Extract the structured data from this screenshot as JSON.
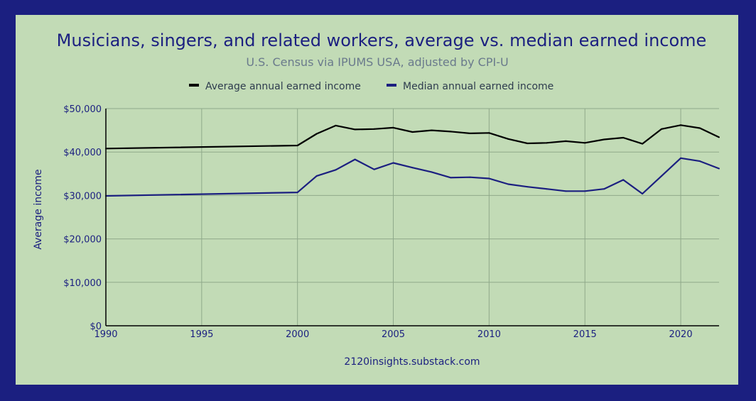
{
  "chart_data": {
    "type": "line",
    "title": "Musicians, singers, and related workers, average vs. median earned income",
    "subtitle": "U.S. Census via IPUMS USA, adjusted by CPI-U",
    "xlabel": "",
    "ylabel": "Average income",
    "source": "2120insights.substack.com",
    "xlim": [
      1990,
      2022
    ],
    "ylim": [
      0,
      50000
    ],
    "x_ticks": [
      1990,
      1995,
      2000,
      2005,
      2010,
      2015,
      2020
    ],
    "x_tick_labels": [
      "1990",
      "1995",
      "2000",
      "2005",
      "2010",
      "2015",
      "2020"
    ],
    "y_ticks": [
      0,
      10000,
      20000,
      30000,
      40000,
      50000
    ],
    "y_tick_labels": [
      "$0",
      "$10,000",
      "$20,000",
      "$30,000",
      "$40,000",
      "$50,000"
    ],
    "grid": true,
    "legend_position": "top-center",
    "series": [
      {
        "name": "Average annual earned income",
        "color": "#000000",
        "x": [
          1990,
          2000,
          2001,
          2002,
          2003,
          2004,
          2005,
          2006,
          2007,
          2008,
          2009,
          2010,
          2011,
          2012,
          2013,
          2014,
          2015,
          2016,
          2017,
          2018,
          2019,
          2020,
          2021,
          2022
        ],
        "values": [
          40800,
          41500,
          44200,
          46100,
          45200,
          45300,
          45600,
          44600,
          45000,
          44700,
          44300,
          44400,
          43000,
          42000,
          42100,
          42500,
          42100,
          42900,
          43300,
          41900,
          45300,
          46200,
          45500,
          43400
        ]
      },
      {
        "name": "Median annual earned income",
        "color": "#1b1f80",
        "x": [
          1990,
          2000,
          2001,
          2002,
          2003,
          2004,
          2005,
          2006,
          2007,
          2008,
          2009,
          2010,
          2011,
          2012,
          2013,
          2014,
          2015,
          2016,
          2017,
          2018,
          2019,
          2020,
          2021,
          2022
        ],
        "values": [
          29900,
          30700,
          34500,
          35900,
          38300,
          36000,
          37500,
          36400,
          35400,
          34100,
          34200,
          33900,
          32600,
          32000,
          31500,
          31000,
          31000,
          31500,
          33600,
          30400,
          34500,
          38600,
          37900,
          36200
        ]
      }
    ]
  }
}
